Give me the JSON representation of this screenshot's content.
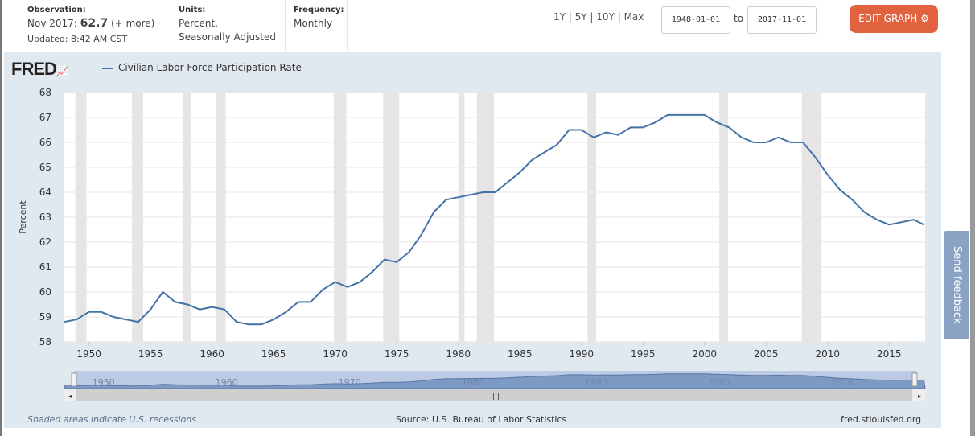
{
  "header": {
    "observation_label": "Observation:",
    "observation_date": "Nov 2017:",
    "observation_value": "62.7",
    "observation_more": "(+ more)",
    "updated": "Updated: 8:42 AM CST",
    "units_label": "Units:",
    "units_line1": "Percent,",
    "units_line2": "Seasonally Adjusted",
    "frequency_label": "Frequency:",
    "frequency": "Monthly",
    "ranges": [
      "1Y",
      "5Y",
      "10Y",
      "Max"
    ],
    "start_date": "1948-01-01",
    "to": "to",
    "end_date": "2017-11-01",
    "edit_button": "EDIT GRAPH"
  },
  "colors": {
    "series": "#4572a7",
    "edit_button": "#e0623f",
    "panel": "#e1e9f0",
    "recession": "#e5e5e5"
  },
  "footer": {
    "recessions_note": "Shaded areas indicate U.S. recessions",
    "source": "Source: U.S. Bureau of Labor Statistics",
    "site": "fred.stlouisfed.org"
  },
  "feedback": "Send feedback",
  "logo": "FRED",
  "chart_data": {
    "type": "line",
    "ylabel": "Percent",
    "ylim": [
      58,
      68
    ],
    "xlim": [
      1948,
      2017.92
    ],
    "grid": true,
    "legend_placement": "top-left",
    "yticks": [
      "58",
      "59",
      "60",
      "61",
      "62",
      "63",
      "64",
      "65",
      "66",
      "67",
      "68"
    ],
    "xticks": [
      "1950",
      "1955",
      "1960",
      "1965",
      "1970",
      "1975",
      "1980",
      "1985",
      "1990",
      "1995",
      "2000",
      "2005",
      "2010",
      "2015"
    ],
    "navigator_ticks": [
      "1950",
      "1960",
      "1970",
      "1980",
      "1990",
      "2000",
      "2010"
    ],
    "series": [
      {
        "name": "Civilian Labor Force Participation Rate",
        "x": [
          1948,
          1949,
          1950,
          1951,
          1952,
          1953,
          1954,
          1955,
          1956,
          1957,
          1958,
          1959,
          1960,
          1961,
          1962,
          1963,
          1964,
          1965,
          1966,
          1967,
          1968,
          1969,
          1970,
          1971,
          1972,
          1973,
          1974,
          1975,
          1976,
          1977,
          1978,
          1979,
          1980,
          1981,
          1982,
          1983,
          1984,
          1985,
          1986,
          1987,
          1988,
          1989,
          1990,
          1991,
          1992,
          1993,
          1994,
          1995,
          1996,
          1997,
          1998,
          1999,
          2000,
          2001,
          2002,
          2003,
          2004,
          2005,
          2006,
          2007,
          2008,
          2009,
          2010,
          2011,
          2012,
          2013,
          2014,
          2015,
          2016,
          2017,
          2017.83
        ],
        "values": [
          58.8,
          58.9,
          59.2,
          59.2,
          59.0,
          58.9,
          58.8,
          59.3,
          60.0,
          59.6,
          59.5,
          59.3,
          59.4,
          59.3,
          58.8,
          58.7,
          58.7,
          58.9,
          59.2,
          59.6,
          59.6,
          60.1,
          60.4,
          60.2,
          60.4,
          60.8,
          61.3,
          61.2,
          61.6,
          62.3,
          63.2,
          63.7,
          63.8,
          63.9,
          64.0,
          64.0,
          64.4,
          64.8,
          65.3,
          65.6,
          65.9,
          66.5,
          66.5,
          66.2,
          66.4,
          66.3,
          66.6,
          66.6,
          66.8,
          67.1,
          67.1,
          67.1,
          67.1,
          66.8,
          66.6,
          66.2,
          66.0,
          66.0,
          66.2,
          66.0,
          66.0,
          65.4,
          64.7,
          64.1,
          63.7,
          63.2,
          62.9,
          62.7,
          62.8,
          62.9,
          62.7
        ]
      }
    ],
    "recessions": [
      [
        1948.9,
        1949.8
      ],
      [
        1953.5,
        1954.4
      ],
      [
        1957.6,
        1958.3
      ],
      [
        1960.3,
        1961.1
      ],
      [
        1969.9,
        1970.9
      ],
      [
        1973.9,
        1975.2
      ],
      [
        1980.0,
        1980.5
      ],
      [
        1981.5,
        1982.9
      ],
      [
        1990.5,
        1991.2
      ],
      [
        2001.2,
        2001.9
      ],
      [
        2007.9,
        2009.5
      ]
    ]
  }
}
